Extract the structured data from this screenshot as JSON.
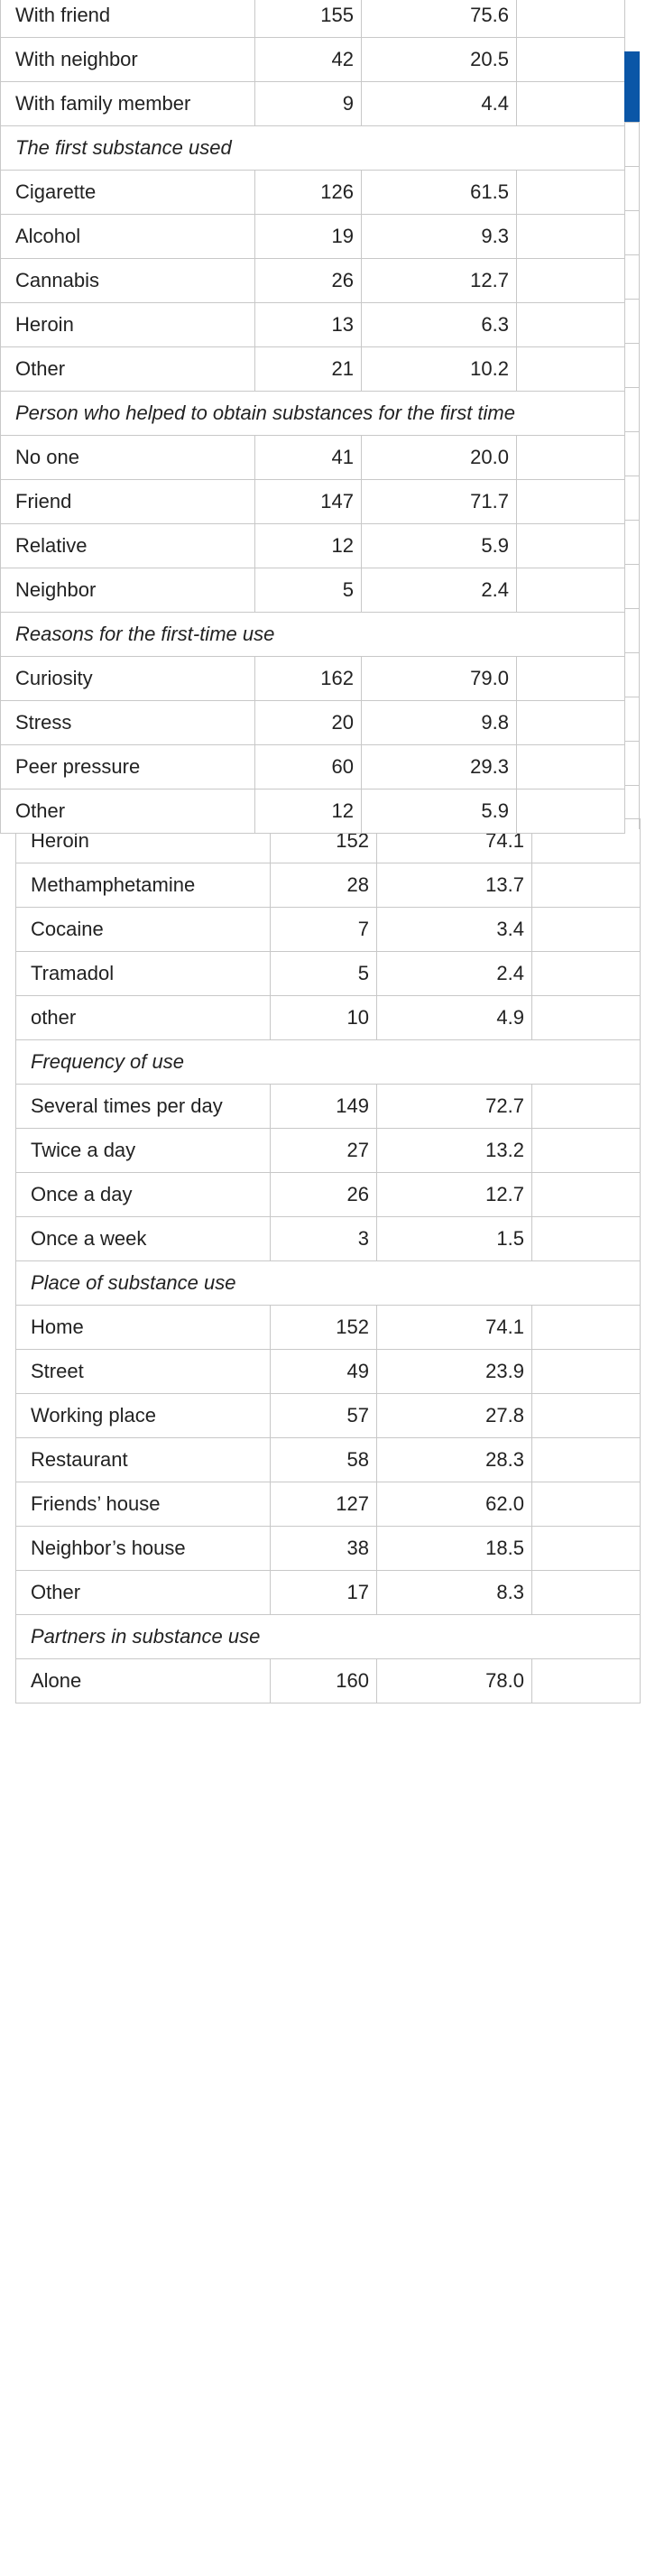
{
  "front_table": {
    "rows": [
      {
        "type": "data",
        "label": "With friend",
        "n": "155",
        "pct": "75.6"
      },
      {
        "type": "data",
        "label": "With neighbor",
        "n": "42",
        "pct": "20.5"
      },
      {
        "type": "data",
        "label": "With family member",
        "n": "9",
        "pct": "4.4"
      },
      {
        "type": "section",
        "label": "The first substance used"
      },
      {
        "type": "data",
        "label": "Cigarette",
        "n": "126",
        "pct": "61.5"
      },
      {
        "type": "data",
        "label": "Alcohol",
        "n": "19",
        "pct": "9.3"
      },
      {
        "type": "data",
        "label": "Cannabis",
        "n": "26",
        "pct": "12.7"
      },
      {
        "type": "data",
        "label": "Heroin",
        "n": "13",
        "pct": "6.3"
      },
      {
        "type": "data",
        "label": "Other",
        "n": "21",
        "pct": "10.2"
      },
      {
        "type": "section",
        "label": "Person who helped to obtain substances for the first time"
      },
      {
        "type": "data",
        "label": "No one",
        "n": "41",
        "pct": "20.0"
      },
      {
        "type": "data",
        "label": "Friend",
        "n": "147",
        "pct": "71.7"
      },
      {
        "type": "data",
        "label": "Relative",
        "n": "12",
        "pct": "5.9"
      },
      {
        "type": "data",
        "label": "Neighbor",
        "n": "5",
        "pct": "2.4"
      },
      {
        "type": "section",
        "label": "Reasons for the first-time use"
      },
      {
        "type": "data",
        "label": "Curiosity",
        "n": "162",
        "pct": "79.0"
      },
      {
        "type": "data",
        "label": "Stress",
        "n": "20",
        "pct": "9.8"
      },
      {
        "type": "data",
        "label": "Peer pressure",
        "n": "60",
        "pct": "29.3"
      },
      {
        "type": "data",
        "label": "Other",
        "n": "12",
        "pct": "5.9"
      }
    ]
  },
  "back_table": {
    "rows": [
      {
        "type": "data",
        "label": "Heroin",
        "n": "152",
        "pct": "74.1"
      },
      {
        "type": "data",
        "label": "Methamphetamine",
        "n": "28",
        "pct": "13.7"
      },
      {
        "type": "data",
        "label": "Cocaine",
        "n": "7",
        "pct": "3.4"
      },
      {
        "type": "data",
        "label": "Tramadol",
        "n": "5",
        "pct": "2.4"
      },
      {
        "type": "data",
        "label": "other",
        "n": "10",
        "pct": "4.9"
      },
      {
        "type": "section",
        "label": "Frequency of use"
      },
      {
        "type": "data",
        "label": "Several times per day",
        "n": "149",
        "pct": "72.7"
      },
      {
        "type": "data",
        "label": "Twice a day",
        "n": "27",
        "pct": "13.2"
      },
      {
        "type": "data",
        "label": "Once a day",
        "n": "26",
        "pct": "12.7"
      },
      {
        "type": "data",
        "label": "Once a week",
        "n": "3",
        "pct": "1.5"
      },
      {
        "type": "section",
        "label": "Place of substance use"
      },
      {
        "type": "data",
        "label": "Home",
        "n": "152",
        "pct": "74.1"
      },
      {
        "type": "data",
        "label": "Street",
        "n": "49",
        "pct": "23.9"
      },
      {
        "type": "data",
        "label": "Working place",
        "n": "57",
        "pct": "27.8"
      },
      {
        "type": "data",
        "label": "Restaurant",
        "n": "58",
        "pct": "28.3"
      },
      {
        "type": "data",
        "label": "Friends’ house",
        "n": "127",
        "pct": "62.0"
      },
      {
        "type": "data",
        "label": "Neighbor’s house",
        "n": "38",
        "pct": "18.5"
      },
      {
        "type": "data",
        "label": "Other",
        "n": "17",
        "pct": "8.3"
      },
      {
        "type": "section",
        "label": "Partners in substance use"
      },
      {
        "type": "data",
        "label": "Alone",
        "n": "160",
        "pct": "78.0"
      }
    ]
  },
  "colors": {
    "accent": "#0a56a7",
    "border": "#c8c8c8",
    "text": "#222222"
  }
}
